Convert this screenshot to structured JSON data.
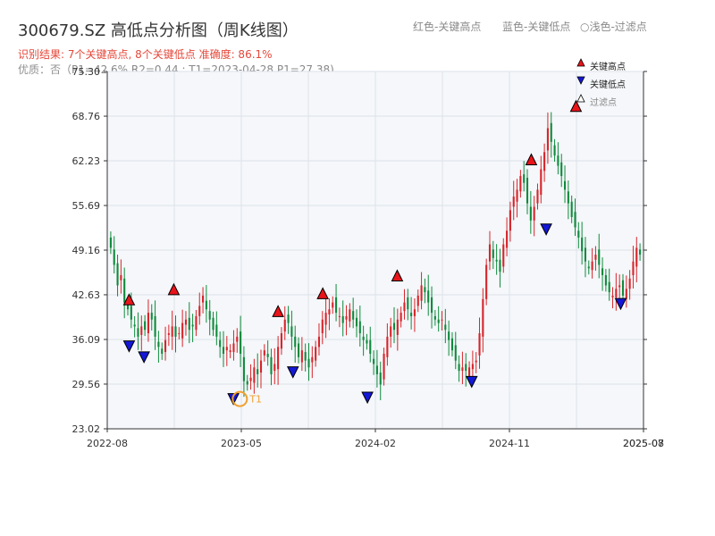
{
  "header": {
    "title": "300679.SZ 高低点分析图（周K线图）",
    "legend_red": "红色-关键高点",
    "legend_blue": "蓝色-关键低点",
    "legend_light": "○浅色-过滤点",
    "result_line": "识别结果: 7个关键高点, 8个关键低点  准确度: 86.1%",
    "quality_label": "优质：否",
    "quality_detail": "（P1=42.6%  R2=0.44 ; T1=2023-04-28 P1=27.38)"
  },
  "colors": {
    "up": "#d6252b",
    "down": "#0f8a3c",
    "high_marker": "#e8141a",
    "low_marker": "#1418d6",
    "t1_ring": "#f0a030",
    "plot_bg": "#f5f7fa",
    "grid": "#dde3ea"
  },
  "chart_data": {
    "type": "candlestick",
    "xlabel": "",
    "ylabel": "",
    "ylim": [
      23.02,
      75.3
    ],
    "y_ticks": [
      "23.02",
      "29.56",
      "36.09",
      "42.63",
      "49.16",
      "55.69",
      "62.23",
      "68.76",
      "75.30"
    ],
    "x_ticks": [
      "2022-08",
      "2023-05",
      "2024-02",
      "2024-11",
      "2025-07",
      "2025-08"
    ],
    "legend": [
      "关键高点",
      "关键低点",
      "过滤点"
    ],
    "legend_position": "top-right",
    "grid": true,
    "key_highs": [
      {
        "date": "2022-09",
        "value": 41.8
      },
      {
        "date": "2022-12",
        "value": 43.3
      },
      {
        "date": "2023-07",
        "value": 40.1
      },
      {
        "date": "2023-10",
        "value": 42.7
      },
      {
        "date": "2024-03",
        "value": 45.3
      },
      {
        "date": "2024-12",
        "value": 62.3
      },
      {
        "date": "2025-03",
        "value": 70.1
      }
    ],
    "key_lows": [
      {
        "date": "2022-09",
        "value": 35.1
      },
      {
        "date": "2022-10",
        "value": 33.5
      },
      {
        "date": "2023-04",
        "value": 27.38
      },
      {
        "date": "2023-08",
        "value": 31.3
      },
      {
        "date": "2024-01",
        "value": 27.6
      },
      {
        "date": "2024-08",
        "value": 29.9
      },
      {
        "date": "2025-01",
        "value": 52.2
      },
      {
        "date": "2025-06",
        "value": 41.3
      }
    ],
    "t1": {
      "label": "T1",
      "date": "2023-04-28",
      "value": 27.38
    },
    "weekly_close": [
      49.5,
      47.0,
      44.0,
      45.5,
      41.5,
      40.5,
      39.0,
      38.0,
      36.5,
      38.0,
      37.5,
      40.0,
      39.0,
      36.5,
      35.0,
      34.0,
      36.0,
      37.0,
      38.0,
      36.5,
      37.0,
      38.5,
      39.0,
      37.5,
      38.0,
      39.5,
      41.0,
      42.5,
      40.5,
      39.0,
      37.5,
      36.5,
      35.0,
      34.0,
      35.0,
      34.5,
      35.5,
      36.5,
      34.0,
      30.0,
      29.5,
      30.5,
      32.0,
      31.0,
      33.0,
      34.5,
      33.5,
      31.0,
      32.5,
      35.0,
      37.0,
      39.0,
      38.5,
      36.5,
      35.0,
      33.5,
      34.5,
      33.0,
      32.0,
      33.5,
      35.0,
      36.5,
      39.0,
      40.0,
      40.5,
      41.5,
      40.0,
      39.5,
      38.5,
      39.5,
      40.5,
      39.0,
      38.0,
      37.0,
      36.0,
      35.5,
      34.0,
      32.5,
      31.0,
      29.5,
      34.0,
      36.5,
      38.0,
      37.5,
      39.0,
      40.0,
      41.5,
      40.5,
      39.5,
      40.5,
      42.5,
      44.0,
      43.0,
      41.5,
      40.0,
      39.0,
      38.5,
      39.0,
      37.5,
      36.0,
      34.5,
      33.0,
      31.5,
      32.0,
      31.5,
      32.0,
      32.5,
      33.0,
      37.0,
      42.0,
      47.0,
      50.0,
      48.0,
      47.5,
      46.0,
      50.0,
      52.0,
      55.0,
      57.0,
      58.0,
      60.0,
      59.0,
      56.0,
      53.5,
      55.5,
      58.0,
      61.0,
      63.5,
      67.0,
      65.0,
      63.0,
      61.5,
      60.0,
      58.0,
      56.0,
      54.0,
      52.5,
      51.0,
      49.0,
      47.5,
      46.5,
      47.5,
      48.5,
      47.0,
      45.5,
      44.0,
      43.0,
      42.5,
      43.5,
      44.0,
      42.5,
      43.5,
      45.0,
      47.5,
      49.5,
      48.5
    ]
  }
}
